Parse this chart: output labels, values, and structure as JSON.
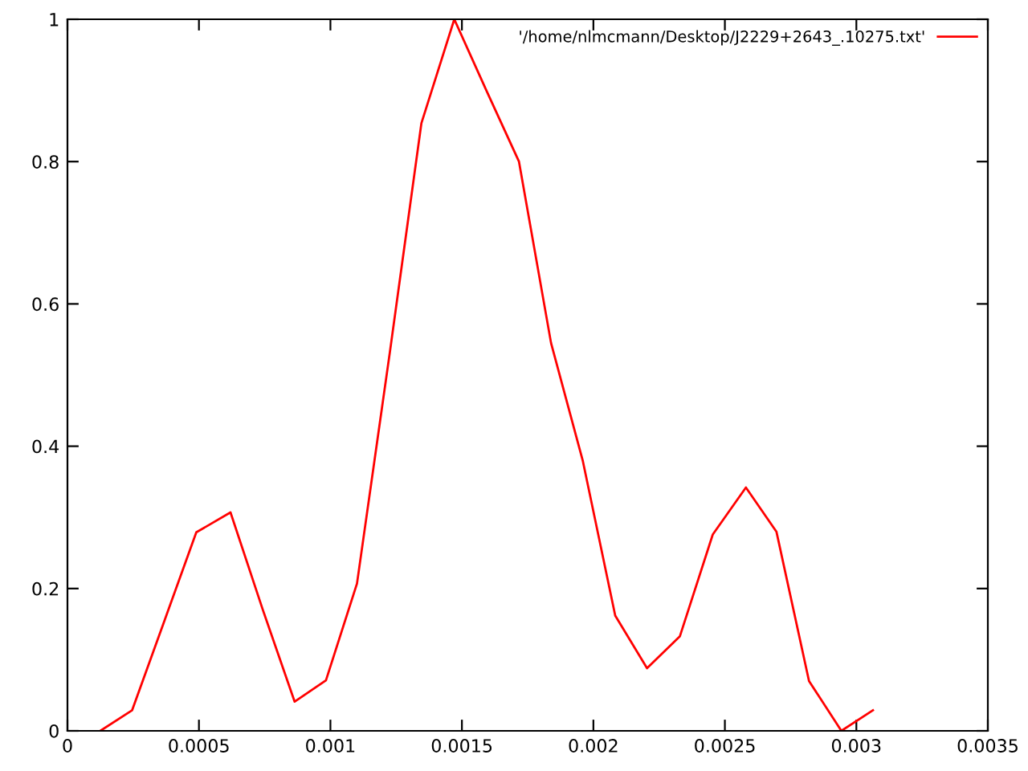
{
  "chart_data": {
    "type": "line",
    "x": [
      0.000125,
      0.000246,
      0.000369,
      0.00049,
      0.00062,
      0.000743,
      0.000864,
      0.000983,
      0.001101,
      0.001226,
      0.001346,
      0.001471,
      0.001593,
      0.001717,
      0.001839,
      0.00196,
      0.002083,
      0.002204,
      0.002329,
      0.002454,
      0.00258,
      0.002696,
      0.00282,
      0.002943,
      0.003063
    ],
    "series": [
      {
        "name": "'/home/nlmcmann/Desktop/J2229+2643_.10275.txt'",
        "color": "#ff0000",
        "values": [
          0,
          0.029,
          0.155,
          0.279,
          0.307,
          0.17,
          0.041,
          0.071,
          0.207,
          0.532,
          0.854,
          1.0,
          0.9,
          0.8,
          0.545,
          0.379,
          0.162,
          0.088,
          0.133,
          0.276,
          0.342,
          0.28,
          0.07,
          0,
          0.029
        ]
      }
    ],
    "xlim": [
      0,
      0.0035
    ],
    "ylim": [
      0,
      1
    ],
    "xticks": [
      0,
      0.0005,
      0.001,
      0.0015,
      0.002,
      0.0025,
      0.003,
      0.0035
    ],
    "yticks": [
      0,
      0.2,
      0.4,
      0.6,
      0.8,
      1
    ],
    "grid": false,
    "legend": "top right",
    "marker": "none",
    "line_style": "solid"
  }
}
